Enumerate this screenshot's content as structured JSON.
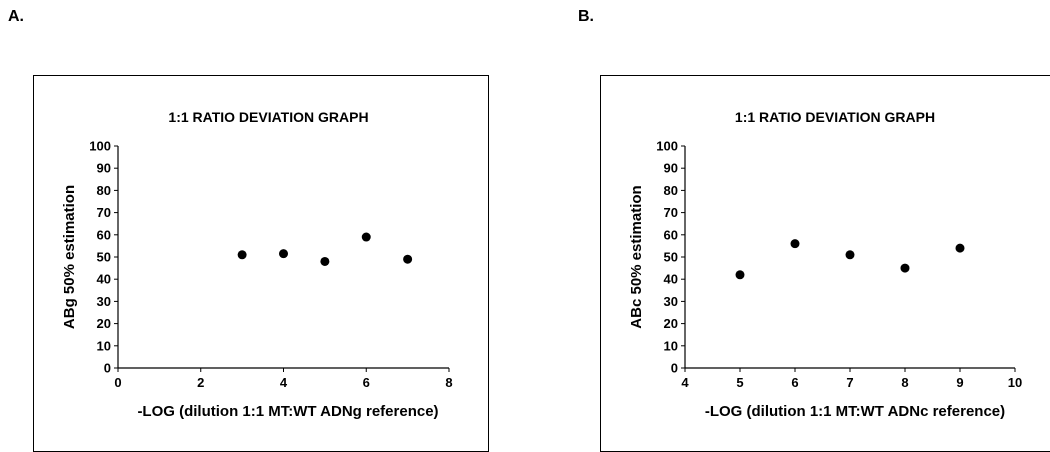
{
  "panels": [
    {
      "label": "A."
    },
    {
      "label": "B."
    }
  ],
  "chart_data": [
    {
      "type": "scatter",
      "title": "1:1 RATIO DEVIATION GRAPH",
      "xlabel": "-LOG (dilution 1:1 MT:WT ADNg reference)",
      "ylabel": "ABg 50% estimation",
      "xlim": [
        0,
        8
      ],
      "ylim": [
        0,
        100
      ],
      "xticks": [
        0,
        2,
        4,
        6,
        8
      ],
      "yticks": [
        0,
        10,
        20,
        30,
        40,
        50,
        60,
        70,
        80,
        90,
        100
      ],
      "grid": false,
      "marker_color": "#000000",
      "x": [
        3,
        4,
        5,
        6,
        7
      ],
      "y": [
        51,
        51.5,
        48,
        59,
        49
      ]
    },
    {
      "type": "scatter",
      "title": "1:1 RATIO DEVIATION GRAPH",
      "xlabel": "-LOG (dilution 1:1 MT:WT ADNc reference)",
      "ylabel": "ABc  50% estimation",
      "xlim": [
        4,
        10
      ],
      "ylim": [
        0,
        100
      ],
      "xticks": [
        4,
        5,
        6,
        7,
        8,
        9,
        10
      ],
      "yticks": [
        0,
        10,
        20,
        30,
        40,
        50,
        60,
        70,
        80,
        90,
        100
      ],
      "grid": false,
      "marker_color": "#000000",
      "x": [
        5,
        6,
        7,
        8,
        9
      ],
      "y": [
        42,
        56,
        51,
        45,
        54
      ]
    }
  ]
}
